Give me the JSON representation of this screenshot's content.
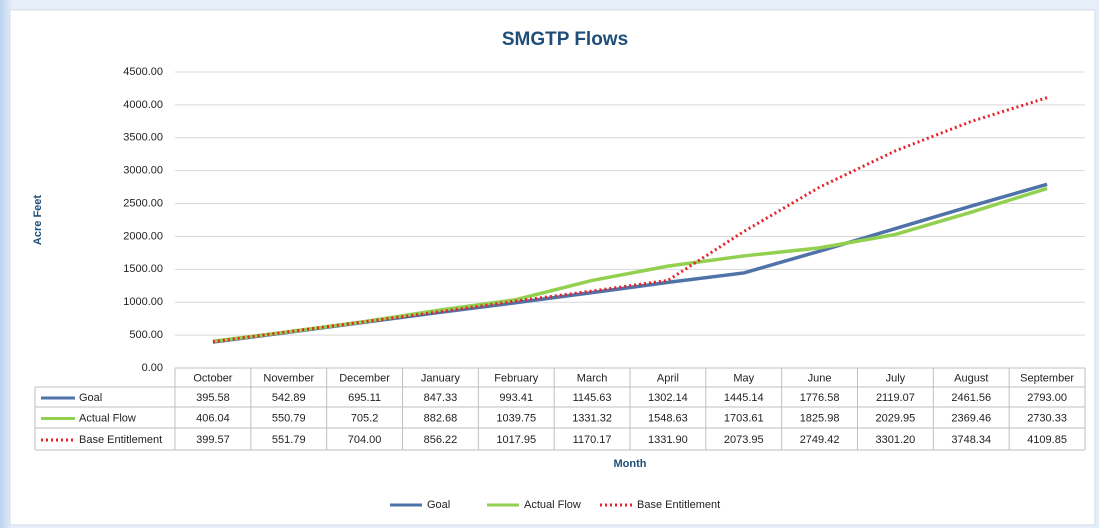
{
  "chart_data": {
    "type": "line",
    "title": "SMGTP Flows",
    "x_label": "Month",
    "y_label": "Acre Feet",
    "categories": [
      "October",
      "November",
      "December",
      "January",
      "February",
      "March",
      "April",
      "May",
      "June",
      "July",
      "August",
      "September"
    ],
    "series": [
      {
        "name": "Goal",
        "color": "#4f73a8",
        "style": "solid",
        "values": [
          395.58,
          542.89,
          695.11,
          847.33,
          993.41,
          1145.63,
          1302.14,
          1445.14,
          1776.58,
          2119.07,
          2461.56,
          2793
        ],
        "value_labels": [
          "395.58",
          "542.89",
          "695.11",
          "847.33",
          "993.41",
          "1145.63",
          "1302.14",
          "1445.14",
          "1776.58",
          "2119.07",
          "2461.56",
          "2793.00"
        ]
      },
      {
        "name": "Actual Flow",
        "color": "#92d050",
        "style": "solid",
        "values": [
          406.04,
          550.79,
          705.2,
          882.68,
          1039.75,
          1331.32,
          1548.63,
          1703.61,
          1825.98,
          2029.95,
          2369.46,
          2730.33
        ],
        "value_labels": [
          "406.04",
          "550.79",
          "705.2",
          "882.68",
          "1039.75",
          "1331.32",
          "1548.63",
          "1703.61",
          "1825.98",
          "2029.95",
          "2369.46",
          "2730.33"
        ]
      },
      {
        "name": "Base Entitlement",
        "color": "#e8202a",
        "style": "dotted",
        "values": [
          399.57,
          551.79,
          704,
          856.22,
          1017.95,
          1170.17,
          1331.9,
          2073.95,
          2749.42,
          3301.2,
          3748.34,
          4109.85
        ],
        "value_labels": [
          "399.57",
          "551.79",
          "704.00",
          "856.22",
          "1017.95",
          "1170.17",
          "1331.90",
          "2073.95",
          "2749.42",
          "3301.20",
          "3748.34",
          "4109.85"
        ]
      }
    ],
    "ylim": [
      0,
      4500
    ],
    "yticks": [
      {
        "value": 0,
        "label": "0.00"
      },
      {
        "value": 500,
        "label": "500.00"
      },
      {
        "value": 1000,
        "label": "1000.00"
      },
      {
        "value": 1500,
        "label": "1500.00"
      },
      {
        "value": 2000,
        "label": "2000.00"
      },
      {
        "value": 2500,
        "label": "2500.00"
      },
      {
        "value": 3000,
        "label": "3000.00"
      },
      {
        "value": 3500,
        "label": "3500.00"
      },
      {
        "value": 4000,
        "label": "4000.00"
      },
      {
        "value": 4500,
        "label": "4500.00"
      }
    ],
    "grid": true,
    "legend": "bottom"
  }
}
